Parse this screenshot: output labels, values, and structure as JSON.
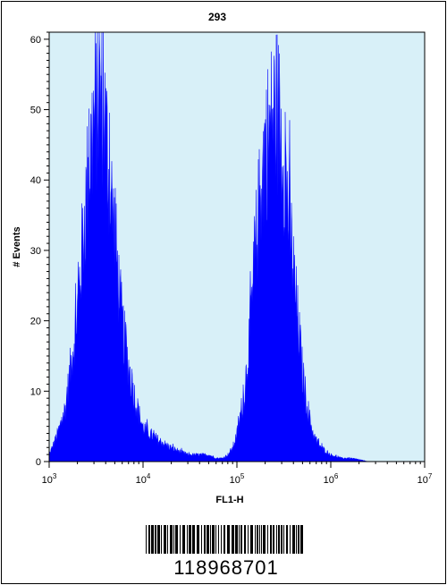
{
  "chart_data": {
    "type": "area",
    "title": "293",
    "xlabel": "FL1-H",
    "ylabel": "# Events",
    "x_scale": "log",
    "xlim": [
      1000,
      10000000
    ],
    "ylim": [
      0,
      61
    ],
    "x_ticks": [
      {
        "value": 1000,
        "base": "10",
        "exp": "3"
      },
      {
        "value": 10000,
        "base": "10",
        "exp": "4"
      },
      {
        "value": 100000,
        "base": "10",
        "exp": "5"
      },
      {
        "value": 1000000,
        "base": "10",
        "exp": "6"
      },
      {
        "value": 10000000,
        "base": "10",
        "exp": "7"
      }
    ],
    "y_ticks": [
      {
        "value": 0,
        "label": "0"
      },
      {
        "value": 10,
        "label": "10"
      },
      {
        "value": 20,
        "label": "20"
      },
      {
        "value": 30,
        "label": "30"
      },
      {
        "value": 40,
        "label": "40"
      },
      {
        "value": 50,
        "label": "50"
      },
      {
        "value": 60,
        "label": "60"
      }
    ],
    "grid": false,
    "fill_color": "#0000ff",
    "background_color": "#d8f0f8",
    "series": [
      {
        "x": [
          1000,
          1150,
          1300,
          1500,
          1700,
          2000,
          2300,
          2600,
          3000,
          3300,
          3600,
          3900,
          4200,
          4500,
          5000,
          5500,
          6000,
          7000,
          8000,
          9000,
          10000,
          12000,
          15000,
          20000,
          30000,
          40000,
          50000,
          60000,
          70000,
          80000,
          90000,
          100000,
          120000,
          140000,
          160000,
          180000,
          200000,
          230000,
          260000,
          280000,
          300000,
          330000,
          360000,
          400000,
          450000,
          500000,
          550000,
          600000,
          650000,
          700000,
          800000,
          1000000,
          1300000,
          1600000,
          2000000,
          2500000,
          3000000,
          4000000,
          5000000,
          7000000,
          10000000
        ],
        "y": [
          1,
          3,
          5,
          8,
          14,
          22,
          33,
          42,
          50,
          52,
          54,
          50,
          45,
          40,
          33,
          26,
          20,
          14,
          10,
          7,
          5,
          4,
          3,
          2,
          1,
          1,
          1,
          0.5,
          0.5,
          1,
          2,
          4,
          10,
          20,
          32,
          40,
          46,
          49,
          52,
          50,
          47,
          42,
          36,
          28,
          20,
          13,
          9,
          6,
          4,
          3,
          2,
          1,
          0.5,
          0.5,
          0.3,
          0,
          0,
          0,
          0,
          0,
          0
        ]
      }
    ]
  },
  "barcode": {
    "number": "118968701"
  }
}
